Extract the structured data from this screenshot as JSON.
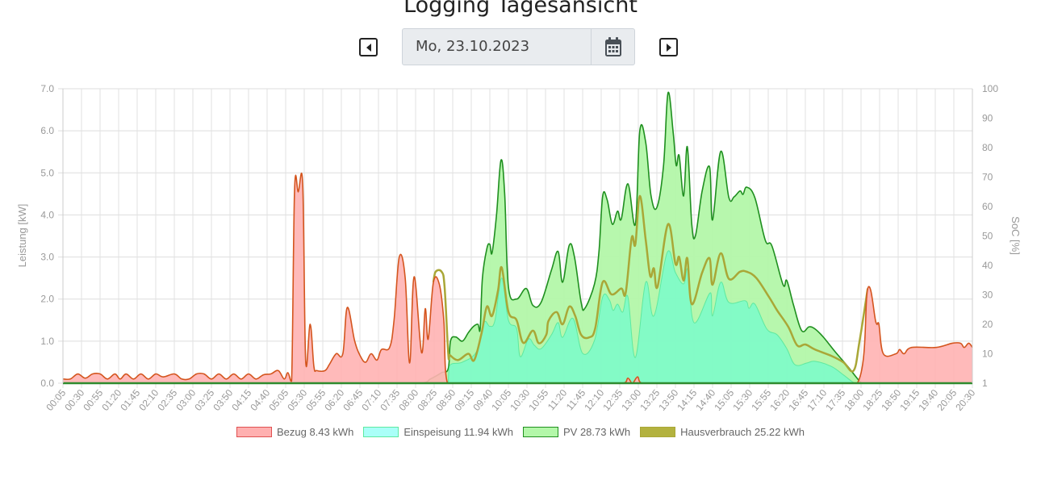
{
  "header": {
    "title": "Logging Tagesansicht"
  },
  "date_picker": {
    "value": "Mo, 23.10.2023",
    "prev_icon": "caret-left-square-icon",
    "next_icon": "caret-right-square-icon",
    "calendar_icon": "calendar-icon"
  },
  "chart_data": {
    "type": "area",
    "x_unit": "minutes since midnight",
    "x_tick_labels": [
      "00:05",
      "00:30",
      "00:55",
      "01:20",
      "01:45",
      "02:10",
      "02:35",
      "03:00",
      "03:25",
      "03:50",
      "04:15",
      "04:40",
      "05:05",
      "05:30",
      "05:55",
      "06:20",
      "06:45",
      "07:10",
      "07:35",
      "08:00",
      "08:25",
      "08:50",
      "09:15",
      "09:40",
      "10:05",
      "10:30",
      "10:55",
      "11:20",
      "11:45",
      "12:10",
      "12:35",
      "13:00",
      "13:25",
      "13:50",
      "14:15",
      "14:40",
      "15:05",
      "15:30",
      "15:55",
      "16:20",
      "16:45",
      "17:10",
      "17:35",
      "18:00",
      "18:25",
      "18:50",
      "19:15",
      "19:40",
      "20:05",
      "20:30"
    ],
    "xlim": [
      5,
      1230
    ],
    "ylabel": "Leistung [kW]",
    "ylim": [
      0,
      7
    ],
    "y_ticks": [
      "0.0",
      "1.0",
      "2.0",
      "3.0",
      "4.0",
      "5.0",
      "6.0",
      "7.0"
    ],
    "y2label": "SoC [%]",
    "y2lim": [
      0,
      100
    ],
    "y2_ticks": [
      "100",
      "90",
      "80",
      "70",
      "60",
      "50",
      "40",
      "30",
      "20",
      "10",
      "1"
    ],
    "grid": true,
    "legend_position": "bottom",
    "series": [
      {
        "name": "PV",
        "legend": "PV 28.73 kWh",
        "fill": "#b3f7a9",
        "line": "#1f8f1f",
        "points": [
          [
            5,
            0
          ],
          [
            485,
            0
          ],
          [
            500,
            0.1
          ],
          [
            515,
            0.25
          ],
          [
            524,
            0.35
          ],
          [
            527,
            1.0
          ],
          [
            534,
            1.1
          ],
          [
            543,
            1.0
          ],
          [
            551,
            1.2
          ],
          [
            558,
            1.35
          ],
          [
            564,
            1.4
          ],
          [
            567,
            1.3
          ],
          [
            570,
            2.5
          ],
          [
            576,
            3.2
          ],
          [
            580,
            3.3
          ],
          [
            583,
            3.1
          ],
          [
            589,
            4.0
          ],
          [
            595,
            5.3
          ],
          [
            600,
            4.5
          ],
          [
            605,
            2.3
          ],
          [
            616,
            2.0
          ],
          [
            629,
            2.25
          ],
          [
            638,
            1.85
          ],
          [
            649,
            1.92
          ],
          [
            663,
            2.69
          ],
          [
            672,
            3.13
          ],
          [
            678,
            2.4
          ],
          [
            687,
            3.28
          ],
          [
            694,
            3.0
          ],
          [
            703,
            1.92
          ],
          [
            708,
            1.78
          ],
          [
            721,
            2.36
          ],
          [
            727,
            3.13
          ],
          [
            732,
            4.45
          ],
          [
            738,
            4.36
          ],
          [
            745,
            3.78
          ],
          [
            752,
            4.09
          ],
          [
            757,
            3.9
          ],
          [
            766,
            4.74
          ],
          [
            776,
            3.78
          ],
          [
            782,
            6.0
          ],
          [
            790,
            5.72
          ],
          [
            797,
            4.47
          ],
          [
            805,
            4.18
          ],
          [
            814,
            5.18
          ],
          [
            820,
            6.9
          ],
          [
            827,
            5.95
          ],
          [
            831,
            5.18
          ],
          [
            835,
            5.41
          ],
          [
            841,
            4.45
          ],
          [
            846,
            5.62
          ],
          [
            852,
            3.78
          ],
          [
            857,
            3.51
          ],
          [
            866,
            4.57
          ],
          [
            876,
            5.14
          ],
          [
            880,
            3.88
          ],
          [
            891,
            5.51
          ],
          [
            902,
            4.41
          ],
          [
            909,
            4.43
          ],
          [
            917,
            4.57
          ],
          [
            921,
            4.49
          ],
          [
            926,
            4.66
          ],
          [
            937,
            4.41
          ],
          [
            951,
            3.4
          ],
          [
            960,
            3.26
          ],
          [
            975,
            2.34
          ],
          [
            980,
            2.44
          ],
          [
            989,
            1.86
          ],
          [
            1000,
            1.25
          ],
          [
            1010,
            1.34
          ],
          [
            1018,
            1.29
          ],
          [
            1029,
            1.1
          ],
          [
            1045,
            0.75
          ],
          [
            1062,
            0.4
          ],
          [
            1078,
            0.05
          ],
          [
            1083,
            0
          ],
          [
            1230,
            0
          ]
        ]
      },
      {
        "name": "Einspeisung",
        "legend": "Einspeisung 11.94 kWh",
        "fill": "#7dfbc9",
        "line": "#5ee9a0",
        "legend_fill": "#aafff8",
        "points": [
          [
            524,
            0
          ],
          [
            526,
            0.42
          ],
          [
            543,
            0.5
          ],
          [
            562,
            0.75
          ],
          [
            572,
            1.44
          ],
          [
            580,
            1.35
          ],
          [
            587,
            1.5
          ],
          [
            596,
            2.5
          ],
          [
            605,
            1.5
          ],
          [
            616,
            1.3
          ],
          [
            621,
            0.63
          ],
          [
            632,
            1.05
          ],
          [
            640,
            0.9
          ],
          [
            649,
            0.82
          ],
          [
            663,
            1.15
          ],
          [
            672,
            1.44
          ],
          [
            678,
            1.09
          ],
          [
            692,
            1.54
          ],
          [
            705,
            0.71
          ],
          [
            721,
            1.02
          ],
          [
            732,
            2.05
          ],
          [
            741,
            1.98
          ],
          [
            746,
            1.73
          ],
          [
            752,
            1.88
          ],
          [
            759,
            1.69
          ],
          [
            766,
            2.05
          ],
          [
            776,
            0.61
          ],
          [
            790,
            2.4
          ],
          [
            801,
            1.6
          ],
          [
            819,
            3.11
          ],
          [
            830,
            2.63
          ],
          [
            841,
            2.36
          ],
          [
            847,
            2.69
          ],
          [
            855,
            1.44
          ],
          [
            877,
            2.15
          ],
          [
            880,
            1.6
          ],
          [
            891,
            2.4
          ],
          [
            902,
            1.92
          ],
          [
            924,
            1.96
          ],
          [
            929,
            1.78
          ],
          [
            937,
            1.88
          ],
          [
            953,
            1.29
          ],
          [
            967,
            1.15
          ],
          [
            980,
            0.82
          ],
          [
            991,
            0.44
          ],
          [
            1007,
            0.48
          ],
          [
            1018,
            0.52
          ],
          [
            1040,
            0.4
          ],
          [
            1056,
            0.2
          ],
          [
            1067,
            0.05
          ],
          [
            1072,
            0
          ]
        ]
      },
      {
        "name": "Hausverbrauch",
        "legend": "Hausverbrauch 25.22 kWh",
        "fill": "none",
        "line": "#a9a737",
        "legend_fill": "#b3b23f",
        "points": [
          [
            504,
            2.4
          ],
          [
            507,
            2.65
          ],
          [
            515,
            2.65
          ],
          [
            519,
            2.3
          ],
          [
            524,
            0.7
          ],
          [
            526,
            0.67
          ],
          [
            537,
            0.55
          ],
          [
            551,
            0.7
          ],
          [
            559,
            0.55
          ],
          [
            569,
            1.2
          ],
          [
            576,
            1.82
          ],
          [
            583,
            1.6
          ],
          [
            591,
            2.2
          ],
          [
            596,
            2.75
          ],
          [
            605,
            1.7
          ],
          [
            616,
            1.5
          ],
          [
            625,
            0.96
          ],
          [
            638,
            1.25
          ],
          [
            646,
            0.95
          ],
          [
            656,
            1.15
          ],
          [
            659,
            1.48
          ],
          [
            670,
            1.69
          ],
          [
            678,
            1.4
          ],
          [
            687,
            1.82
          ],
          [
            695,
            1.6
          ],
          [
            703,
            1.15
          ],
          [
            714,
            1.09
          ],
          [
            722,
            1.31
          ],
          [
            732,
            2.4
          ],
          [
            744,
            2.11
          ],
          [
            757,
            2.25
          ],
          [
            763,
            2.15
          ],
          [
            771,
            3.45
          ],
          [
            776,
            3.3
          ],
          [
            782,
            4.45
          ],
          [
            790,
            3.4
          ],
          [
            796,
            2.55
          ],
          [
            801,
            2.73
          ],
          [
            806,
            2.3
          ],
          [
            820,
            3.78
          ],
          [
            830,
            2.84
          ],
          [
            835,
            3.0
          ],
          [
            841,
            2.44
          ],
          [
            846,
            2.97
          ],
          [
            852,
            1.88
          ],
          [
            866,
            2.63
          ],
          [
            876,
            2.97
          ],
          [
            880,
            2.34
          ],
          [
            891,
            3.09
          ],
          [
            902,
            2.48
          ],
          [
            917,
            2.65
          ],
          [
            926,
            2.65
          ],
          [
            939,
            2.5
          ],
          [
            956,
            2.05
          ],
          [
            967,
            1.73
          ],
          [
            982,
            1.34
          ],
          [
            994,
            0.9
          ],
          [
            1005,
            0.92
          ],
          [
            1018,
            0.8
          ],
          [
            1040,
            0.65
          ],
          [
            1056,
            0.5
          ],
          [
            1070,
            0.3
          ],
          [
            1078,
            1.0
          ],
          [
            1089,
            2.25
          ]
        ]
      },
      {
        "name": "Bezug",
        "legend": "Bezug 8.43 kWh",
        "fill": "#ffb3b3",
        "line": "#d4551e",
        "legend_fill": "#ffb0b0",
        "legend_border": "#e05050",
        "points": [
          [
            5,
            0.1
          ],
          [
            15,
            0.1
          ],
          [
            25,
            0.22
          ],
          [
            35,
            0.12
          ],
          [
            45,
            0.22
          ],
          [
            55,
            0.22
          ],
          [
            65,
            0.1
          ],
          [
            75,
            0.22
          ],
          [
            82,
            0.1
          ],
          [
            90,
            0.22
          ],
          [
            100,
            0.1
          ],
          [
            110,
            0.22
          ],
          [
            120,
            0.1
          ],
          [
            130,
            0.22
          ],
          [
            140,
            0.15
          ],
          [
            155,
            0.22
          ],
          [
            165,
            0.1
          ],
          [
            175,
            0.1
          ],
          [
            185,
            0.22
          ],
          [
            195,
            0.22
          ],
          [
            205,
            0.1
          ],
          [
            215,
            0.22
          ],
          [
            225,
            0.1
          ],
          [
            235,
            0.22
          ],
          [
            245,
            0.1
          ],
          [
            255,
            0.22
          ],
          [
            265,
            0.1
          ],
          [
            275,
            0.2
          ],
          [
            285,
            0.22
          ],
          [
            295,
            0.3
          ],
          [
            303,
            0.1
          ],
          [
            308,
            0.25
          ],
          [
            313,
            0.05
          ],
          [
            317,
            4.6
          ],
          [
            322,
            4.55
          ],
          [
            328,
            4.7
          ],
          [
            332,
            0.5
          ],
          [
            338,
            1.4
          ],
          [
            343,
            0.4
          ],
          [
            347,
            0.3
          ],
          [
            358,
            0.3
          ],
          [
            364,
            0.45
          ],
          [
            373,
            0.7
          ],
          [
            382,
            0.7
          ],
          [
            388,
            1.8
          ],
          [
            398,
            1.0
          ],
          [
            406,
            0.63
          ],
          [
            413,
            0.5
          ],
          [
            420,
            0.7
          ],
          [
            428,
            0.55
          ],
          [
            434,
            0.8
          ],
          [
            445,
            0.85
          ],
          [
            451,
            1.5
          ],
          [
            458,
            3.0
          ],
          [
            466,
            2.5
          ],
          [
            472,
            0.48
          ],
          [
            478,
            2.53
          ],
          [
            488,
            0.73
          ],
          [
            493,
            1.77
          ],
          [
            497,
            1.05
          ],
          [
            504,
            2.4
          ],
          [
            512,
            2.35
          ],
          [
            518,
            1.5
          ],
          [
            523,
            0
          ],
          [
            760,
            0
          ],
          [
            766,
            0.12
          ],
          [
            772,
            0
          ],
          [
            779,
            0.15
          ],
          [
            785,
            0
          ],
          [
            1075,
            0
          ],
          [
            1089,
            2.25
          ],
          [
            1100,
            1.45
          ],
          [
            1104,
            1.4
          ],
          [
            1110,
            0.7
          ],
          [
            1127,
            0.7
          ],
          [
            1132,
            0.8
          ],
          [
            1138,
            0.7
          ],
          [
            1148,
            0.85
          ],
          [
            1181,
            0.85
          ],
          [
            1203,
            0.95
          ],
          [
            1214,
            0.95
          ],
          [
            1219,
            0.85
          ],
          [
            1225,
            0.95
          ],
          [
            1230,
            0.85
          ]
        ]
      }
    ],
    "legend_order": [
      "Bezug",
      "Einspeisung",
      "PV",
      "Hausverbrauch"
    ]
  }
}
